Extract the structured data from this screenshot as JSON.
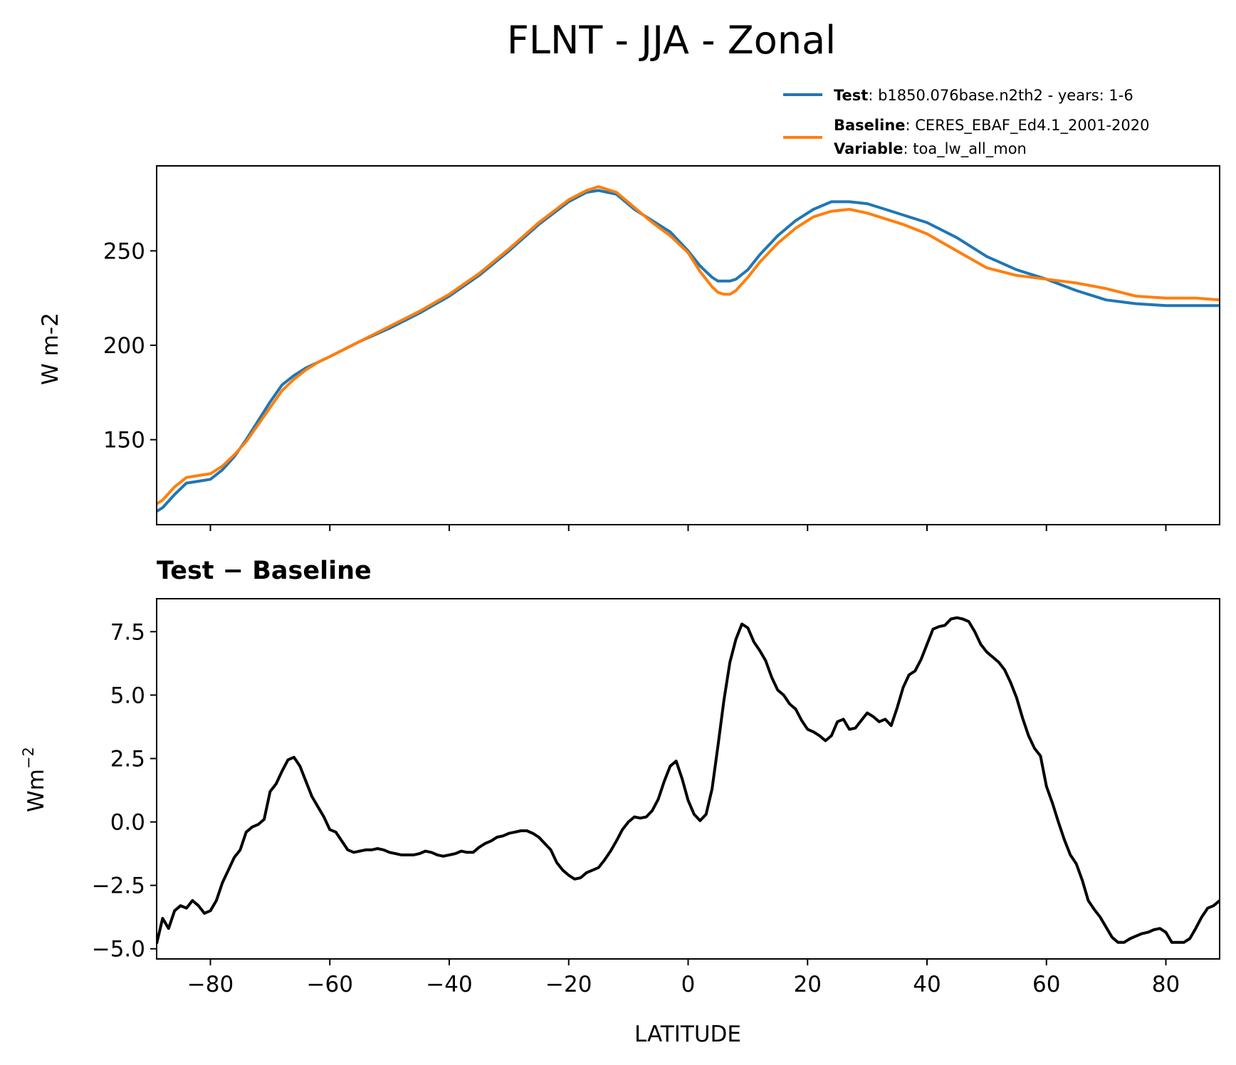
{
  "figure": {
    "title": "FLNT - JJA - Zonal"
  },
  "legend": {
    "test_key": "Test",
    "test_value": ": b1850.076base.n2th2 - years: 1-6",
    "baseline_key": "Baseline",
    "baseline_value": ": CERES_EBAF_Ed4.1_2001-2020",
    "variable_key": "Variable",
    "variable_value": ": toa_lw_all_mon",
    "test_color": "#1f77b4",
    "baseline_color": "#ff7f0e"
  },
  "chart_data": [
    {
      "type": "line",
      "title": "",
      "xlabel": "",
      "ylabel": "W m-2",
      "xlim": [
        -89,
        89
      ],
      "ylim": [
        105,
        295
      ],
      "yticks": [
        150,
        200,
        250
      ],
      "xticks": [
        -80,
        -60,
        -40,
        -20,
        0,
        20,
        40,
        60,
        80
      ],
      "grid": false,
      "legend_position": "above-right",
      "series": [
        {
          "name": "Test",
          "color": "#1f77b4",
          "x": [
            -89,
            -88,
            -86,
            -84,
            -82,
            -80,
            -78,
            -76,
            -74,
            -72,
            -70,
            -68,
            -66,
            -64,
            -62,
            -60,
            -55,
            -50,
            -45,
            -40,
            -35,
            -30,
            -25,
            -20,
            -17,
            -15,
            -12,
            -9,
            -6,
            -3,
            0,
            2,
            4,
            5,
            6,
            7,
            8,
            10,
            12,
            15,
            18,
            21,
            24,
            27,
            30,
            33,
            36,
            40,
            45,
            50,
            55,
            60,
            65,
            70,
            75,
            80,
            85,
            89
          ],
          "y": [
            112,
            114,
            121,
            127,
            128,
            129,
            134,
            141,
            150,
            160,
            170,
            179,
            184,
            188,
            191,
            194,
            202,
            209,
            217,
            226,
            237,
            250,
            264,
            276,
            281,
            282,
            280,
            272,
            266,
            260,
            250,
            242,
            236,
            234,
            234,
            234,
            235,
            240,
            248,
            258,
            266,
            272,
            276,
            276,
            275,
            272,
            269,
            265,
            257,
            247,
            240,
            235,
            229,
            224,
            222,
            221,
            221,
            221
          ]
        },
        {
          "name": "Baseline",
          "color": "#ff7f0e",
          "x": [
            -89,
            -88,
            -86,
            -84,
            -82,
            -80,
            -78,
            -76,
            -74,
            -72,
            -70,
            -68,
            -66,
            -64,
            -62,
            -60,
            -55,
            -50,
            -45,
            -40,
            -35,
            -30,
            -25,
            -20,
            -17,
            -15,
            -12,
            -9,
            -6,
            -3,
            0,
            2,
            4,
            5,
            6,
            7,
            8,
            10,
            12,
            15,
            18,
            21,
            24,
            27,
            30,
            33,
            36,
            40,
            45,
            50,
            55,
            60,
            65,
            70,
            75,
            80,
            85,
            89
          ],
          "y": [
            116,
            118,
            125,
            130,
            131,
            132,
            136,
            142,
            149,
            158,
            167,
            176,
            182,
            187,
            191,
            194,
            202,
            210,
            218,
            227,
            238,
            251,
            265,
            277,
            282,
            284,
            281,
            273,
            265,
            258,
            249,
            239,
            231,
            228,
            227,
            227,
            229,
            236,
            244,
            254,
            262,
            268,
            271,
            272,
            270,
            267,
            264,
            259,
            250,
            241,
            237,
            235,
            233,
            230,
            226,
            225,
            225,
            224
          ]
        }
      ]
    },
    {
      "type": "line",
      "title": "Test − Baseline",
      "xlabel": "LATITUDE",
      "ylabel": "Wm⁻²",
      "xlim": [
        -89,
        89
      ],
      "ylim": [
        -5.4,
        8.8
      ],
      "yticks": [
        -5.0,
        -2.5,
        0.0,
        2.5,
        5.0,
        7.5
      ],
      "ytick_labels": [
        "−5.0",
        "−2.5",
        "0.0",
        "2.5",
        "5.0",
        "7.5"
      ],
      "xticks": [
        -80,
        -60,
        -40,
        -20,
        0,
        20,
        40,
        60,
        80
      ],
      "xtick_labels": [
        "−80",
        "−60",
        "−40",
        "−20",
        "0",
        "20",
        "40",
        "60",
        "80"
      ],
      "grid": false,
      "series": [
        {
          "name": "Test − Baseline",
          "color": "#000000",
          "x": [
            -89,
            -88,
            -87,
            -86,
            -85,
            -84,
            -83,
            -82,
            -81,
            -80,
            -79,
            -78,
            -77,
            -76,
            -75,
            -74,
            -73,
            -72,
            -71,
            -70,
            -69,
            -68,
            -67,
            -66,
            -65,
            -64,
            -63,
            -62,
            -61,
            -60,
            -59,
            -58,
            -57,
            -56,
            -55,
            -54,
            -53,
            -52,
            -51,
            -50,
            -49,
            -48,
            -47,
            -46,
            -45,
            -44,
            -43,
            -42,
            -41,
            -40,
            -39,
            -38,
            -37,
            -36,
            -35,
            -34,
            -33,
            -32,
            -31,
            -30,
            -29,
            -28,
            -27,
            -26,
            -25,
            -24,
            -23,
            -22,
            -21,
            -20,
            -19,
            -18,
            -17,
            -16,
            -15,
            -14,
            -13,
            -12,
            -11,
            -10,
            -9,
            -8,
            -7,
            -6,
            -5,
            -4,
            -3,
            -2,
            -1,
            0,
            1,
            2,
            3,
            4,
            5,
            6,
            7,
            8,
            9,
            10,
            11,
            12,
            13,
            14,
            15,
            16,
            17,
            18,
            19,
            20,
            21,
            22,
            23,
            24,
            25,
            26,
            27,
            28,
            29,
            30,
            31,
            32,
            33,
            34,
            35,
            36,
            37,
            38,
            39,
            40,
            41,
            42,
            43,
            44,
            45,
            46,
            47,
            48,
            49,
            50,
            51,
            52,
            53,
            54,
            55,
            56,
            57,
            58,
            59,
            60,
            61,
            62,
            63,
            64,
            65,
            66,
            67,
            68,
            69,
            70,
            71,
            72,
            73,
            74,
            75,
            76,
            77,
            78,
            79,
            80,
            81,
            82,
            83,
            84,
            85,
            86,
            87,
            88,
            89
          ],
          "y": [
            -4.8,
            -3.8,
            -4.2,
            -3.5,
            -3.3,
            -3.4,
            -3.1,
            -3.3,
            -3.6,
            -3.5,
            -3.1,
            -2.4,
            -1.9,
            -1.4,
            -1.1,
            -0.4,
            -0.2,
            -0.1,
            0.1,
            1.2,
            1.5,
            2.0,
            2.45,
            2.55,
            2.2,
            1.6,
            1.0,
            0.6,
            0.2,
            -0.3,
            -0.4,
            -0.75,
            -1.1,
            -1.2,
            -1.15,
            -1.1,
            -1.1,
            -1.05,
            -1.1,
            -1.2,
            -1.25,
            -1.3,
            -1.3,
            -1.3,
            -1.25,
            -1.15,
            -1.2,
            -1.3,
            -1.35,
            -1.3,
            -1.25,
            -1.15,
            -1.2,
            -1.2,
            -1.0,
            -0.85,
            -0.75,
            -0.6,
            -0.55,
            -0.45,
            -0.4,
            -0.35,
            -0.35,
            -0.45,
            -0.6,
            -0.85,
            -1.1,
            -1.6,
            -1.9,
            -2.1,
            -2.25,
            -2.2,
            -2.0,
            -1.9,
            -1.8,
            -1.5,
            -1.15,
            -0.75,
            -0.3,
            0.0,
            0.2,
            0.15,
            0.2,
            0.45,
            0.9,
            1.6,
            2.2,
            2.4,
            1.7,
            0.85,
            0.3,
            0.05,
            0.3,
            1.3,
            3.0,
            4.8,
            6.3,
            7.2,
            7.8,
            7.65,
            7.1,
            6.75,
            6.35,
            5.7,
            5.2,
            5.0,
            4.65,
            4.45,
            4.0,
            3.65,
            3.55,
            3.4,
            3.2,
            3.4,
            3.95,
            4.05,
            3.65,
            3.7,
            4.0,
            4.3,
            4.15,
            3.95,
            4.05,
            3.8,
            4.5,
            5.3,
            5.8,
            5.95,
            6.4,
            7.0,
            7.6,
            7.7,
            7.75,
            8.0,
            8.05,
            8.0,
            7.9,
            7.5,
            7.0,
            6.7,
            6.5,
            6.3,
            6.0,
            5.5,
            4.9,
            4.1,
            3.4,
            2.9,
            2.6,
            1.4,
            0.75,
            0.0,
            -0.7,
            -1.3,
            -1.65,
            -2.3,
            -3.1,
            -3.45,
            -3.75,
            -4.15,
            -4.55,
            -4.75,
            -4.75,
            -4.6,
            -4.5,
            -4.4,
            -4.35,
            -4.25,
            -4.2,
            -4.35,
            -4.75,
            -4.75,
            -4.75,
            -4.6,
            -4.2,
            -3.75,
            -3.4,
            -3.3,
            -3.1
          ]
        }
      ]
    }
  ]
}
